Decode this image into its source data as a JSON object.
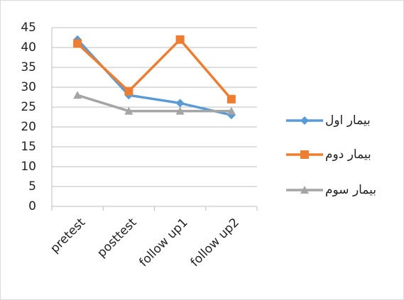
{
  "chart_data": {
    "type": "line",
    "categories": [
      "pretest",
      "posttest",
      "follow up1",
      "follow up2"
    ],
    "series": [
      {
        "name": "بیمار اول",
        "color": "#5b9bd5",
        "marker": "diamond",
        "values": [
          42,
          28,
          26,
          23
        ]
      },
      {
        "name": "بیمار دوم",
        "color": "#ed7d31",
        "marker": "square",
        "values": [
          41,
          29,
          42,
          27
        ]
      },
      {
        "name": "بیمار سوم",
        "color": "#a5a5a5",
        "marker": "triangle",
        "values": [
          28,
          24,
          24,
          24
        ]
      }
    ],
    "ylim": [
      0,
      45
    ],
    "yticks": [
      0,
      5,
      10,
      15,
      20,
      25,
      30,
      35,
      40,
      45
    ],
    "grid": true,
    "legend": "right"
  }
}
